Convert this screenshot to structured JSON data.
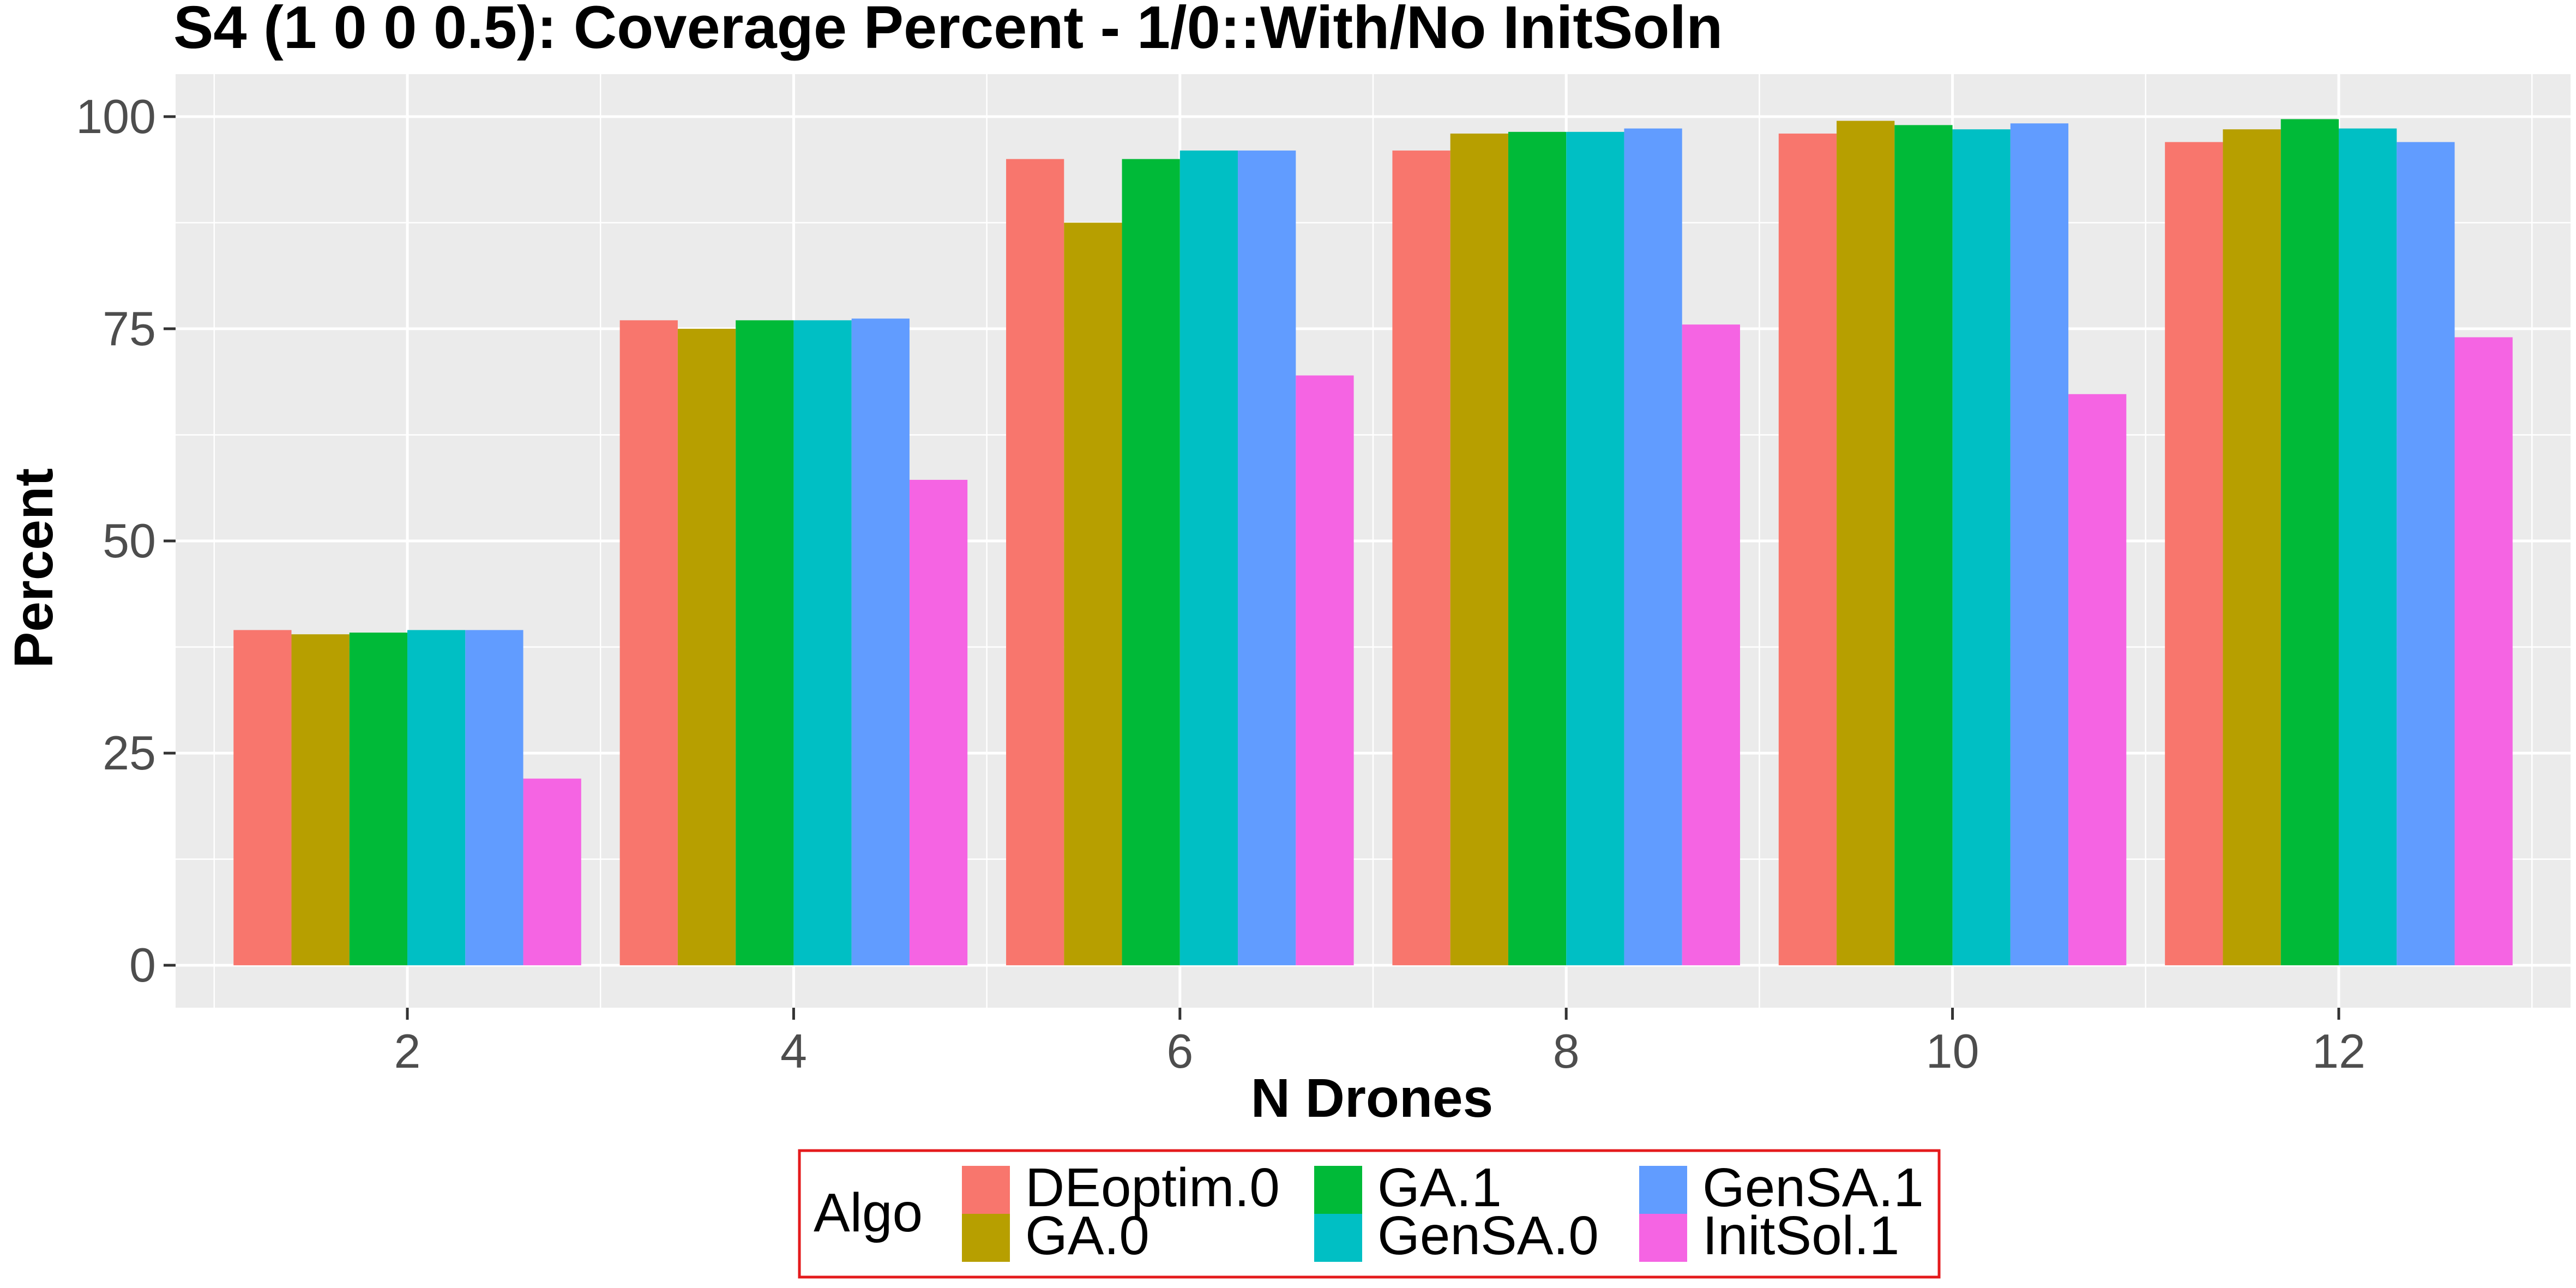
{
  "chart_data": {
    "type": "bar",
    "title": "S4 (1 0 0 0.5): Coverage Percent - 1/0::With/No InitSoln",
    "xlabel": "N Drones",
    "ylabel": "Percent",
    "categories": [
      "2",
      "4",
      "6",
      "8",
      "10",
      "12"
    ],
    "ylim": [
      -5,
      105
    ],
    "yticks": [
      "0",
      "25",
      "50",
      "75",
      "100"
    ],
    "grid": true,
    "legend": {
      "title": "Algo",
      "position": "bottom",
      "border_color": "#e41a1c"
    },
    "series": [
      {
        "name": "DEoptim.0",
        "color": "#F8766D",
        "values": [
          39.5,
          76.0,
          95.0,
          96.0,
          98.0,
          97.0
        ]
      },
      {
        "name": "GA.0",
        "color": "#B79F00",
        "values": [
          39.0,
          75.0,
          87.5,
          98.0,
          99.5,
          98.5
        ]
      },
      {
        "name": "GA.1",
        "color": "#00BA38",
        "values": [
          39.2,
          76.0,
          95.0,
          98.2,
          99.0,
          99.7
        ]
      },
      {
        "name": "GenSA.0",
        "color": "#00BFC4",
        "values": [
          39.5,
          76.0,
          96.0,
          98.2,
          98.5,
          98.6
        ]
      },
      {
        "name": "GenSA.1",
        "color": "#619CFF",
        "values": [
          39.5,
          76.2,
          96.0,
          98.6,
          99.2,
          97.0
        ]
      },
      {
        "name": "InitSol.1",
        "color": "#F564E3",
        "values": [
          22.0,
          57.2,
          69.5,
          75.5,
          67.3,
          74.0
        ]
      }
    ]
  }
}
